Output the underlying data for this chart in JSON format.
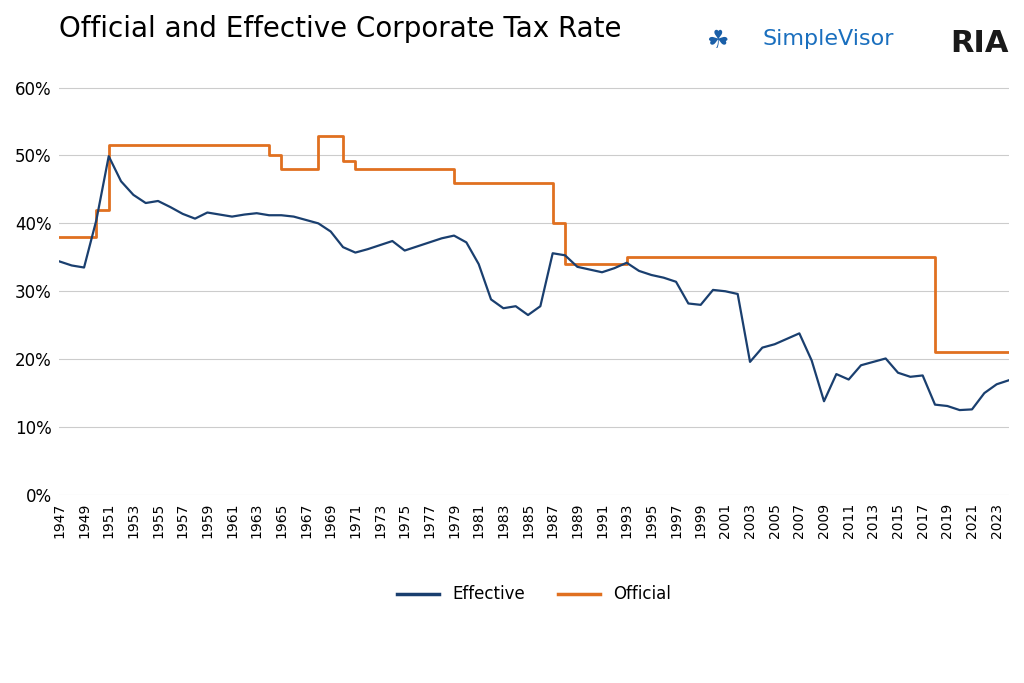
{
  "title": "Official and Effective Corporate Tax Rate",
  "title_fontsize": 20,
  "background_color": "#ffffff",
  "effective_color": "#1a3f6f",
  "official_color": "#e07020",
  "effective_linewidth": 1.6,
  "official_linewidth": 2.0,
  "ylim": [
    0,
    0.65
  ],
  "yticks": [
    0.0,
    0.1,
    0.2,
    0.3,
    0.4,
    0.5,
    0.6
  ],
  "ytick_labels": [
    "0%",
    "10%",
    "20%",
    "30%",
    "40%",
    "50%",
    "60%"
  ],
  "grid_color": "#cccccc",
  "grid_linewidth": 0.8,
  "legend_labels": [
    "Effective",
    "Official"
  ],
  "official_data": [
    [
      1947,
      0.38
    ],
    [
      1950,
      0.38
    ],
    [
      1950,
      0.42
    ],
    [
      1951,
      0.42
    ],
    [
      1951,
      0.515
    ],
    [
      1964,
      0.515
    ],
    [
      1964,
      0.5
    ],
    [
      1965,
      0.5
    ],
    [
      1965,
      0.48
    ],
    [
      1968,
      0.48
    ],
    [
      1968,
      0.528
    ],
    [
      1969,
      0.528
    ],
    [
      1969,
      0.528
    ],
    [
      1970,
      0.528
    ],
    [
      1970,
      0.492
    ],
    [
      1971,
      0.492
    ],
    [
      1971,
      0.48
    ],
    [
      1979,
      0.48
    ],
    [
      1979,
      0.46
    ],
    [
      1987,
      0.46
    ],
    [
      1987,
      0.4
    ],
    [
      1988,
      0.4
    ],
    [
      1988,
      0.34
    ],
    [
      1993,
      0.34
    ],
    [
      1993,
      0.35
    ],
    [
      2018,
      0.35
    ],
    [
      2018,
      0.21
    ],
    [
      2024,
      0.21
    ]
  ],
  "effective_data": [
    [
      1947,
      0.344
    ],
    [
      1948,
      0.338
    ],
    [
      1949,
      0.335
    ],
    [
      1950,
      0.405
    ],
    [
      1951,
      0.499
    ],
    [
      1952,
      0.462
    ],
    [
      1953,
      0.442
    ],
    [
      1954,
      0.43
    ],
    [
      1955,
      0.433
    ],
    [
      1956,
      0.424
    ],
    [
      1957,
      0.414
    ],
    [
      1958,
      0.407
    ],
    [
      1959,
      0.416
    ],
    [
      1960,
      0.413
    ],
    [
      1961,
      0.41
    ],
    [
      1962,
      0.413
    ],
    [
      1963,
      0.415
    ],
    [
      1964,
      0.412
    ],
    [
      1965,
      0.412
    ],
    [
      1966,
      0.41
    ],
    [
      1967,
      0.405
    ],
    [
      1968,
      0.4
    ],
    [
      1969,
      0.388
    ],
    [
      1970,
      0.365
    ],
    [
      1971,
      0.357
    ],
    [
      1972,
      0.362
    ],
    [
      1973,
      0.368
    ],
    [
      1974,
      0.374
    ],
    [
      1975,
      0.36
    ],
    [
      1976,
      0.366
    ],
    [
      1977,
      0.372
    ],
    [
      1978,
      0.378
    ],
    [
      1979,
      0.382
    ],
    [
      1980,
      0.372
    ],
    [
      1981,
      0.34
    ],
    [
      1982,
      0.288
    ],
    [
      1983,
      0.275
    ],
    [
      1984,
      0.278
    ],
    [
      1985,
      0.265
    ],
    [
      1986,
      0.278
    ],
    [
      1987,
      0.356
    ],
    [
      1988,
      0.353
    ],
    [
      1989,
      0.336
    ],
    [
      1990,
      0.332
    ],
    [
      1991,
      0.328
    ],
    [
      1992,
      0.334
    ],
    [
      1993,
      0.342
    ],
    [
      1994,
      0.33
    ],
    [
      1995,
      0.324
    ],
    [
      1996,
      0.32
    ],
    [
      1997,
      0.314
    ],
    [
      1998,
      0.282
    ],
    [
      1999,
      0.28
    ],
    [
      2000,
      0.302
    ],
    [
      2001,
      0.3
    ],
    [
      2002,
      0.296
    ],
    [
      2003,
      0.196
    ],
    [
      2004,
      0.217
    ],
    [
      2005,
      0.222
    ],
    [
      2006,
      0.23
    ],
    [
      2007,
      0.238
    ],
    [
      2008,
      0.198
    ],
    [
      2009,
      0.138
    ],
    [
      2010,
      0.178
    ],
    [
      2011,
      0.17
    ],
    [
      2012,
      0.191
    ],
    [
      2013,
      0.196
    ],
    [
      2014,
      0.201
    ],
    [
      2015,
      0.18
    ],
    [
      2016,
      0.174
    ],
    [
      2017,
      0.176
    ],
    [
      2018,
      0.133
    ],
    [
      2019,
      0.131
    ],
    [
      2020,
      0.125
    ],
    [
      2021,
      0.126
    ],
    [
      2022,
      0.15
    ],
    [
      2023,
      0.163
    ],
    [
      2024,
      0.169
    ]
  ],
  "ria_text": "RIA",
  "simplevisor_text": "SimpleVisor",
  "ria_color": "#1a1a1a",
  "simplevisor_color": "#1a6fbe",
  "ria_fontsize": 22,
  "simplevisor_fontsize": 16
}
